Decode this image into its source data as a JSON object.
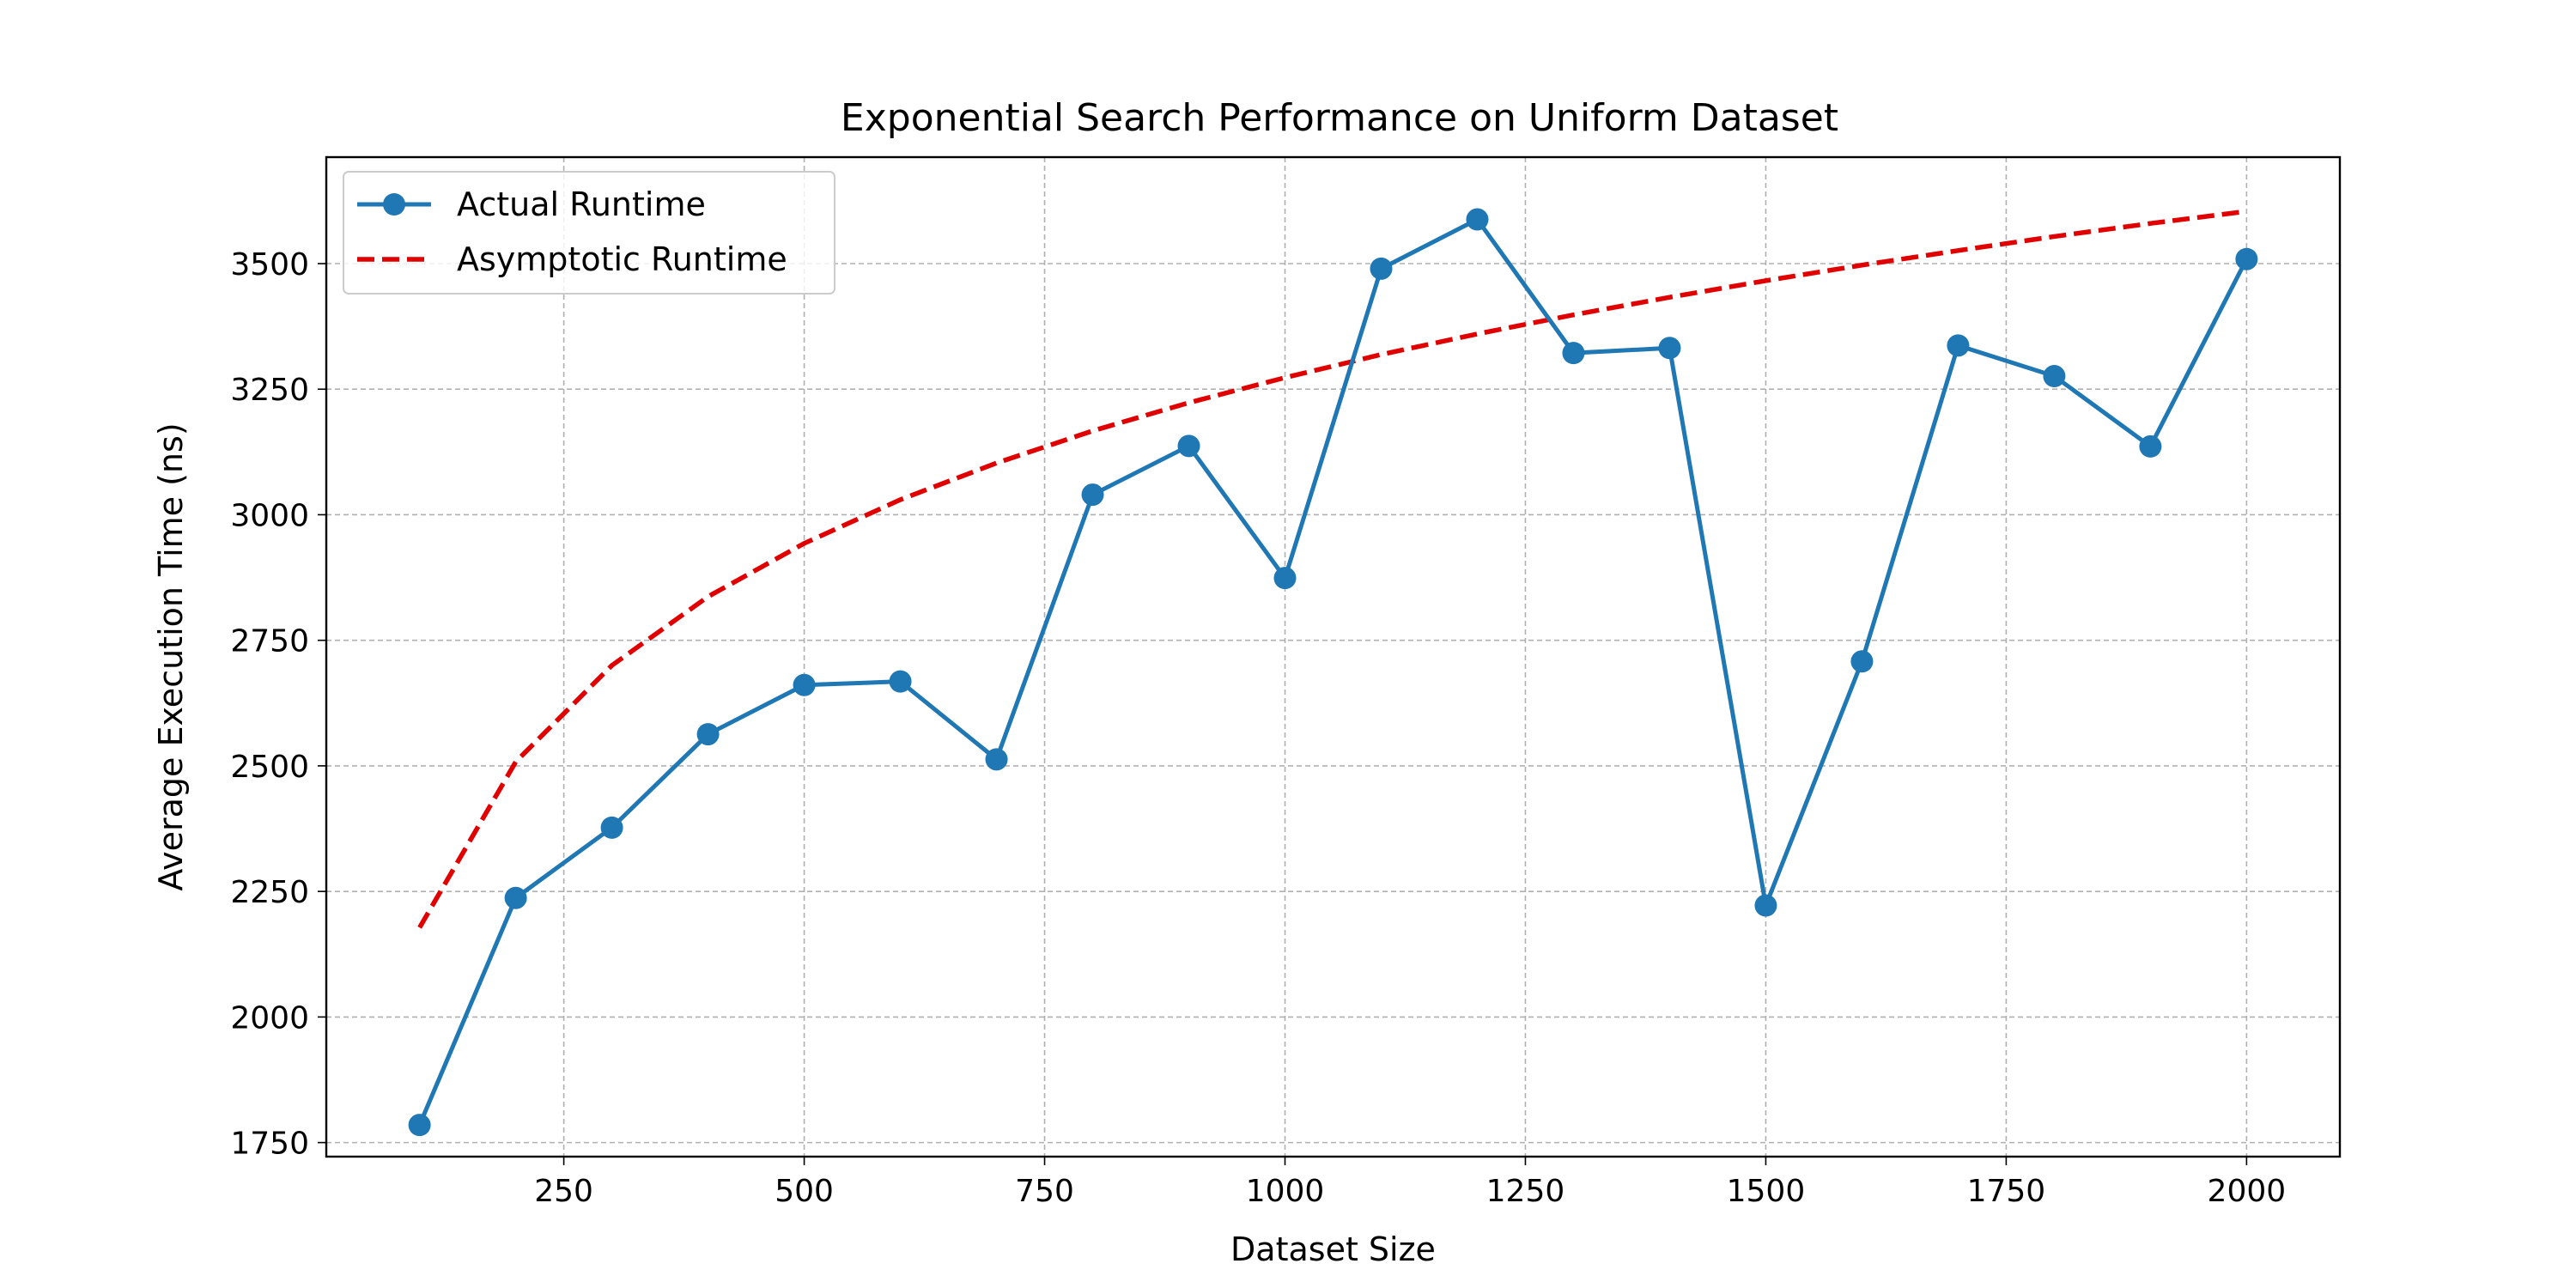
{
  "chart_data": {
    "type": "line",
    "title": "Exponential Search Performance on Uniform Dataset",
    "xlabel": "Dataset Size",
    "ylabel": "Average Execution Time (ns)",
    "xlim": [
      3,
      2097
    ],
    "ylim": [
      1722,
      3712
    ],
    "xticks": [
      250,
      500,
      750,
      1000,
      1250,
      1500,
      1750,
      2000
    ],
    "yticks": [
      1750,
      2000,
      2250,
      2500,
      2750,
      3000,
      3250,
      3500
    ],
    "grid": true,
    "legend_position": "upper-left",
    "x": [
      100,
      200,
      300,
      400,
      500,
      600,
      700,
      800,
      900,
      1000,
      1100,
      1200,
      1300,
      1400,
      1500,
      1600,
      1700,
      1800,
      1900,
      2000
    ],
    "series": [
      {
        "name": "Actual Runtime",
        "style": "solid-line-with-circle-markers",
        "color": "#1f77b4",
        "values": [
          1785,
          2237,
          2377,
          2563,
          2661,
          2668,
          2513,
          3040,
          3137,
          2874,
          3490,
          3588,
          3322,
          3332,
          2222,
          2708,
          3337,
          3276,
          3136,
          3509
        ]
      },
      {
        "name": "Asymptotic Runtime",
        "style": "dashed-line",
        "color": "#e00000",
        "values": [
          2178,
          2508,
          2700,
          2837,
          2943,
          3030,
          3103,
          3167,
          3223,
          3273,
          3319,
          3360,
          3398,
          3433,
          3466,
          3497,
          3526,
          3554,
          3580,
          3604
        ]
      }
    ]
  }
}
